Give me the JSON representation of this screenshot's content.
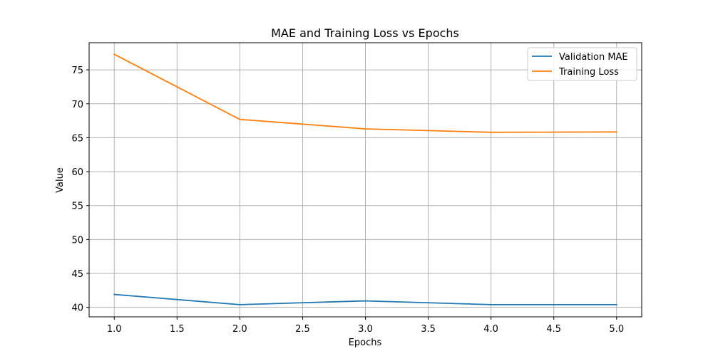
{
  "chart_data": {
    "type": "line",
    "title": "MAE and Training Loss vs Epochs",
    "xlabel": "Epochs",
    "ylabel": "Value",
    "x": [
      1,
      2,
      3,
      4,
      5
    ],
    "xlim": [
      0.8,
      5.2
    ],
    "ylim": [
      38.6,
      79.0
    ],
    "xticks": [
      1.0,
      1.5,
      2.0,
      2.5,
      3.0,
      3.5,
      4.0,
      4.5,
      5.0
    ],
    "xtick_labels": [
      "1.0",
      "1.5",
      "2.0",
      "2.5",
      "3.0",
      "3.5",
      "4.0",
      "4.5",
      "5.0"
    ],
    "yticks": [
      40,
      45,
      50,
      55,
      60,
      65,
      70,
      75
    ],
    "ytick_labels": [
      "40",
      "45",
      "50",
      "55",
      "60",
      "65",
      "70",
      "75"
    ],
    "grid": true,
    "legend_position": "top-right",
    "series": [
      {
        "name": "Validation MAE",
        "color": "#1f77b4",
        "values": [
          41.9,
          40.4,
          40.95,
          40.4,
          40.4
        ]
      },
      {
        "name": "Training Loss",
        "color": "#ff7f0e",
        "values": [
          77.3,
          67.7,
          66.3,
          65.8,
          65.85
        ]
      }
    ]
  }
}
